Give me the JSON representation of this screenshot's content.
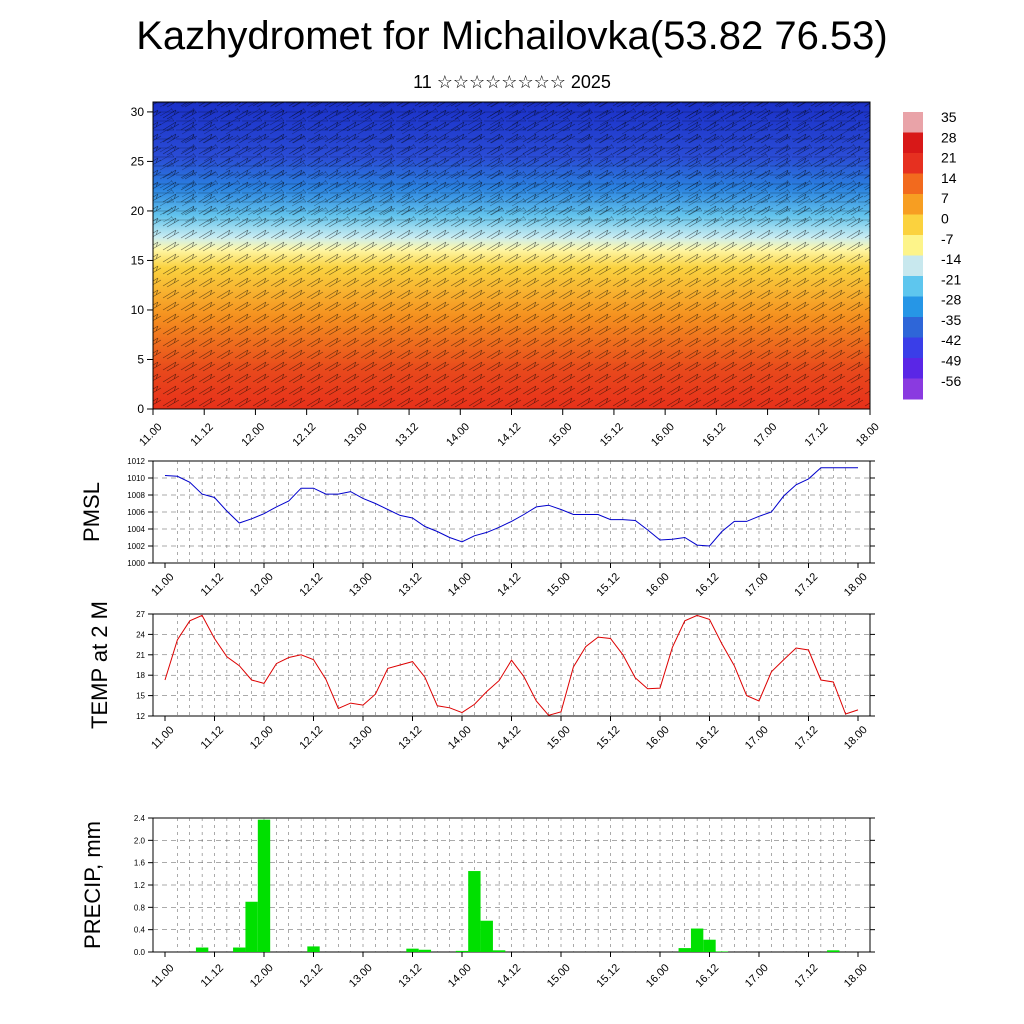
{
  "header": {
    "title": "Kazhydromet for Michailovka(53.82 76.53)",
    "subtitle": "11 ☆☆☆☆☆☆☆☆ 2025"
  },
  "colors": {
    "pmsl": "#0000cc",
    "temp": "#dd0000",
    "precip": "#00e000"
  },
  "chart_data": [
    {
      "type": "heatmap",
      "name": "cross-section",
      "y_ticks": [
        0,
        5,
        10,
        15,
        20,
        25,
        30
      ],
      "ylim": [
        0,
        31
      ],
      "x_ticks": [
        "11.00",
        "11.12",
        "12.00",
        "12.12",
        "13.00",
        "13.12",
        "14.00",
        "14.12",
        "15.00",
        "15.12",
        "16.00",
        "16.12",
        "17.00",
        "17.12",
        "18.00"
      ],
      "colorbar_labels": [
        "35",
        "28",
        "21",
        "14",
        "7",
        "0",
        "-7",
        "-14",
        "-21",
        "-28",
        "-35",
        "-42",
        "-49",
        "-56"
      ],
      "colorbar_colors": [
        "#e9a3a8",
        "#d81818",
        "#e63020",
        "#f26a1e",
        "#f79e22",
        "#fbd23e",
        "#fdf48a",
        "#c8e8ee",
        "#5ec6ee",
        "#2696e6",
        "#2e66d8",
        "#3a3ee8",
        "#5a26e6",
        "#8a3ae0"
      ]
    },
    {
      "type": "line",
      "name": "PMSL",
      "ylabel": "PMSL",
      "ylim": [
        1000,
        1012
      ],
      "y_ticks": [
        1000,
        1002,
        1004,
        1006,
        1008,
        1010,
        1012
      ],
      "x_ticks": [
        "11.00",
        "11.12",
        "12.00",
        "12.12",
        "13.00",
        "13.12",
        "14.00",
        "14.12",
        "15.00",
        "15.12",
        "16.00",
        "16.12",
        "17.00",
        "17.12",
        "18.00"
      ],
      "x_hours": [
        0,
        3,
        6,
        9,
        12,
        15,
        18,
        21,
        24,
        27,
        30,
        33,
        36,
        39,
        42,
        45,
        48,
        51,
        54,
        57,
        60,
        63,
        66,
        69,
        72,
        75,
        78,
        81,
        84,
        87,
        90,
        93,
        96,
        99,
        102,
        105,
        108,
        111,
        114,
        117,
        120,
        123,
        126,
        129,
        132,
        135,
        138,
        141,
        144,
        147,
        150,
        153,
        156,
        159,
        162,
        165,
        168
      ],
      "values": [
        1010.3,
        1010.2,
        1009.5,
        1008.1,
        1007.7,
        1006.1,
        1004.7,
        1005.2,
        1005.8,
        1006.6,
        1007.3,
        1008.8,
        1008.8,
        1008.1,
        1008.1,
        1008.4,
        1007.6,
        1007.0,
        1006.3,
        1005.6,
        1005.3,
        1004.3,
        1003.7,
        1003.0,
        1002.5,
        1003.2,
        1003.6,
        1004.2,
        1004.9,
        1005.7,
        1006.6,
        1006.8,
        1006.3,
        1005.7,
        1005.7,
        1005.7,
        1005.1,
        1005.1,
        1005.0,
        1003.9,
        1002.7,
        1002.8,
        1003.0,
        1002.1,
        1002.0,
        1003.7,
        1004.9,
        1004.9,
        1005.5,
        1006.0,
        1007.9,
        1009.2,
        1009.9,
        1011.2,
        1011.2,
        1011.2,
        1011.2
      ]
    },
    {
      "type": "line",
      "name": "TEMP at 2 M",
      "ylabel": "TEMP at 2 M",
      "ylim": [
        12,
        27
      ],
      "y_ticks": [
        12,
        15,
        18,
        21,
        24,
        27
      ],
      "x_ticks": [
        "11.00",
        "11.12",
        "12.00",
        "12.12",
        "13.00",
        "13.12",
        "14.00",
        "14.12",
        "15.00",
        "15.12",
        "16.00",
        "16.12",
        "17.00",
        "17.12",
        "18.00"
      ],
      "x_hours": [
        0,
        3,
        6,
        9,
        12,
        15,
        18,
        21,
        24,
        27,
        30,
        33,
        36,
        39,
        42,
        45,
        48,
        51,
        54,
        57,
        60,
        63,
        66,
        69,
        72,
        75,
        78,
        81,
        84,
        87,
        90,
        93,
        96,
        99,
        102,
        105,
        108,
        111,
        114,
        117,
        120,
        123,
        126,
        129,
        132,
        135,
        138,
        141,
        144,
        147,
        150,
        153,
        156,
        159,
        162,
        165,
        168
      ],
      "values": [
        17.3,
        23.2,
        26.0,
        26.8,
        23.4,
        20.7,
        19.4,
        17.3,
        16.8,
        19.7,
        20.6,
        21.0,
        20.3,
        17.4,
        13.1,
        13.9,
        13.6,
        15.2,
        19.0,
        19.5,
        20.0,
        17.7,
        13.5,
        13.2,
        12.5,
        13.7,
        15.6,
        17.2,
        20.2,
        17.8,
        14.2,
        12.1,
        12.6,
        19.2,
        22.2,
        23.6,
        23.4,
        21.0,
        17.6,
        16.0,
        16.1,
        22.1,
        26.0,
        26.8,
        26.2,
        22.6,
        19.4,
        15.0,
        14.2,
        18.5,
        20.3,
        22.0,
        21.7,
        17.3,
        17.0,
        12.3,
        12.9
      ]
    },
    {
      "type": "bar",
      "name": "PRECIP, mm",
      "ylabel": "PRECIP, mm",
      "ylim": [
        0,
        2.4
      ],
      "y_ticks": [
        "0.0",
        "0.4",
        "0.8",
        "1.2",
        "1.6",
        "2.0",
        "2.4"
      ],
      "x_ticks": [
        "11.00",
        "11.12",
        "12.00",
        "12.12",
        "13.00",
        "13.12",
        "14.00",
        "14.12",
        "15.00",
        "15.12",
        "16.00",
        "16.12",
        "17.00",
        "17.12",
        "18.00"
      ],
      "x_hours": [
        9,
        18,
        21,
        24,
        36,
        60,
        63,
        72,
        75,
        78,
        81,
        126,
        129,
        132,
        135,
        162
      ],
      "values": [
        0.08,
        0.08,
        0.9,
        2.37,
        0.1,
        0.06,
        0.04,
        0.02,
        1.45,
        0.56,
        0.03,
        0.07,
        0.42,
        0.22,
        0.01,
        0.03
      ]
    }
  ]
}
